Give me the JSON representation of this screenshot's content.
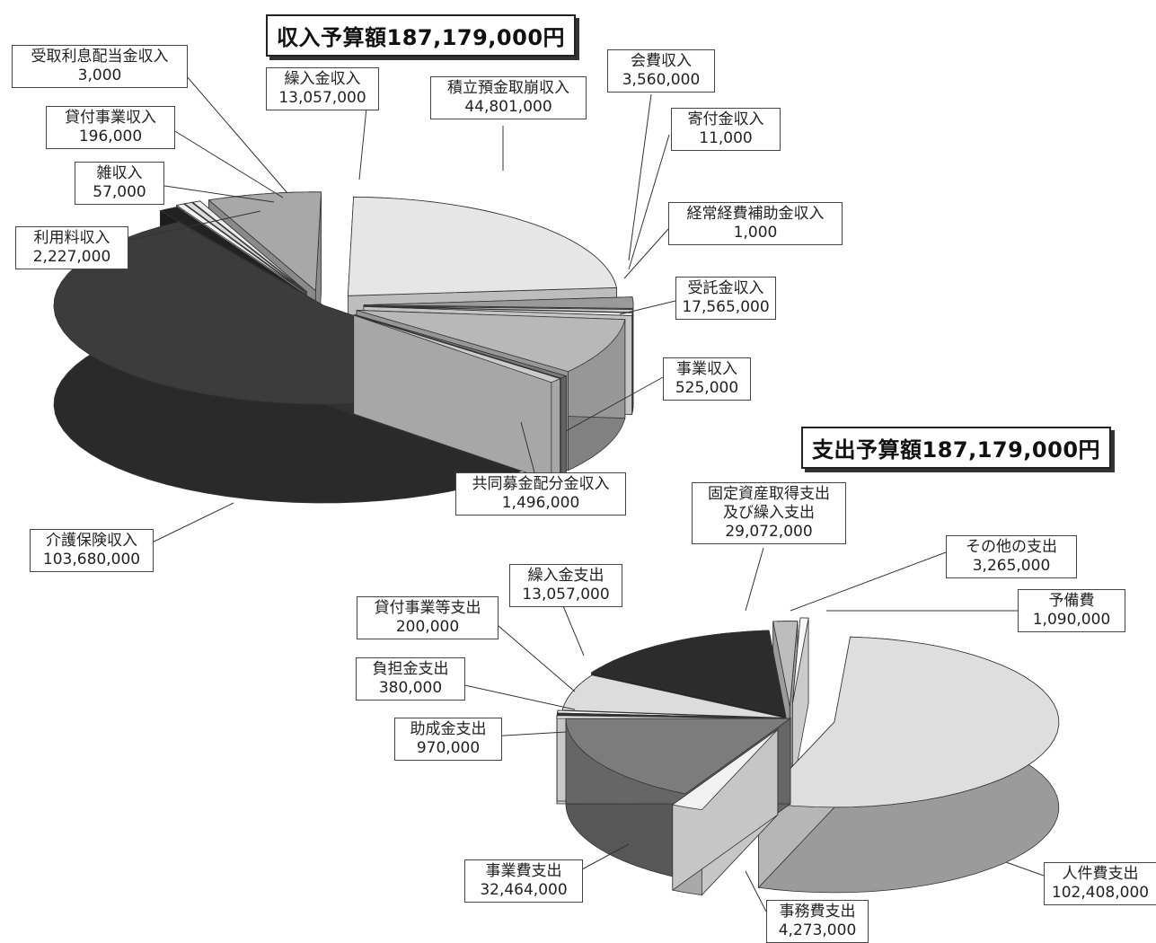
{
  "chart_data": [
    {
      "type": "pie",
      "title": "収入予算額187,179,000円",
      "slices": [
        {
          "name": "積立預金取崩収入",
          "value": 44801000,
          "color": "#e6e6e6"
        },
        {
          "name": "会費収入",
          "value": 3560000,
          "color": "#9a9a9a"
        },
        {
          "name": "寄付金収入",
          "value": 11000,
          "color": "#d0d0d0"
        },
        {
          "name": "経常経費補助金収入",
          "value": 1000,
          "color": "#f0f0f0"
        },
        {
          "name": "受託金収入",
          "value": 17565000,
          "color": "#b8b8b8"
        },
        {
          "name": "事業収入",
          "value": 525000,
          "color": "#7a7a7a"
        },
        {
          "name": "共同募金配分金収入",
          "value": 1496000,
          "color": "#cccccc"
        },
        {
          "name": "介護保険収入",
          "value": 103680000,
          "color": "#3c3c3c"
        },
        {
          "name": "利用料収入",
          "value": 2227000,
          "color": "#222222"
        },
        {
          "name": "雑収入",
          "value": 57000,
          "color": "#f4f4f4"
        },
        {
          "name": "貸付事業収入",
          "value": 196000,
          "color": "#dcdcdc"
        },
        {
          "name": "受取利息配当金収入",
          "value": 3000,
          "color": "#eeeeee"
        },
        {
          "name": "繰入金収入",
          "value": 13057000,
          "color": "#a8a8a8"
        }
      ],
      "labels": [
        {
          "name": "受取利息配当金収入",
          "value": "3,000"
        },
        {
          "name": "繰入金収入",
          "value": "13,057,000"
        },
        {
          "name": "積立預金取崩収入",
          "value": "44,801,000"
        },
        {
          "name": "会費収入",
          "value": "3,560,000"
        },
        {
          "name": "貸付事業収入",
          "value": "196,000"
        },
        {
          "name": "寄付金収入",
          "value": "11,000"
        },
        {
          "name": "雑収入",
          "value": "57,000"
        },
        {
          "name": "経常経費補助金収入",
          "value": "1,000"
        },
        {
          "name": "利用料収入",
          "value": "2,227,000"
        },
        {
          "name": "受託金収入",
          "value": "17,565,000"
        },
        {
          "name": "事業収入",
          "value": "525,000"
        },
        {
          "name": "共同募金配分金収入",
          "value": "1,496,000"
        },
        {
          "name": "介護保険収入",
          "value": "103,680,000"
        }
      ]
    },
    {
      "type": "pie",
      "title": "支出予算額187,179,000円",
      "slices": [
        {
          "name": "人件費支出",
          "value": 102408000,
          "color": "#dedede"
        },
        {
          "name": "事務費支出",
          "value": 4273000,
          "color": "#f2f2f2"
        },
        {
          "name": "事業費支出",
          "value": 32464000,
          "color": "#7c7c7c"
        },
        {
          "name": "助成金支出",
          "value": 970000,
          "color": "#f4f4f4"
        },
        {
          "name": "負担金支出",
          "value": 380000,
          "color": "#333333"
        },
        {
          "name": "貸付事業等支出",
          "value": 200000,
          "color": "#ffffff"
        },
        {
          "name": "繰入金支出",
          "value": 13057000,
          "color": "#dcdcdc"
        },
        {
          "name": "固定資産取得支出及び繰入支出",
          "value": 29072000,
          "color": "#2c2c2c"
        },
        {
          "name": "その他の支出",
          "value": 3265000,
          "color": "#bdbdbd"
        },
        {
          "name": "予備費",
          "value": 1090000,
          "color": "#f7f7f7"
        }
      ],
      "labels": [
        {
          "name": "固定資産取得支出",
          "name2": "及び繰入支出",
          "value": "29,072,000"
        },
        {
          "name": "その他の支出",
          "value": "3,265,000"
        },
        {
          "name": "繰入金支出",
          "value": "13,057,000"
        },
        {
          "name": "予備費",
          "value": "1,090,000"
        },
        {
          "name": "貸付事業等支出",
          "value": "200,000"
        },
        {
          "name": "負担金支出",
          "value": "380,000"
        },
        {
          "name": "助成金支出",
          "value": "970,000"
        },
        {
          "name": "事業費支出",
          "value": "32,464,000"
        },
        {
          "name": "人件費支出",
          "value": "102,408,000"
        },
        {
          "name": "事務費支出",
          "value": "4,273,000"
        }
      ]
    }
  ]
}
